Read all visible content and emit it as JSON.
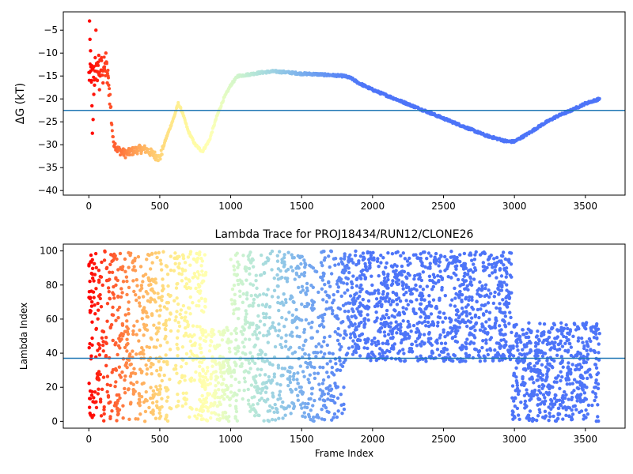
{
  "chart_data": [
    {
      "type": "scatter",
      "title": "",
      "xlabel": "",
      "ylabel": "ΔG (kT)",
      "xlim": [
        -180,
        3780
      ],
      "ylim": [
        -41,
        -1
      ],
      "xticks": [
        0,
        500,
        1000,
        1500,
        2000,
        2500,
        3000,
        3500
      ],
      "yticks": [
        -5,
        -10,
        -15,
        -20,
        -25,
        -30,
        -35,
        -40
      ],
      "hline": -22.5,
      "hline_color": "#1f77b4",
      "colormap": "rainbow (red at frame 0 → violet at late frames)",
      "keypoints": [
        [
          0,
          -15
        ],
        [
          60,
          -14
        ],
        [
          100,
          -13
        ],
        [
          130,
          -14
        ],
        [
          150,
          -20
        ],
        [
          170,
          -29
        ],
        [
          200,
          -31
        ],
        [
          260,
          -32
        ],
        [
          300,
          -31.5
        ],
        [
          350,
          -31
        ],
        [
          400,
          -31
        ],
        [
          450,
          -32
        ],
        [
          500,
          -33
        ],
        [
          540,
          -29
        ],
        [
          600,
          -24
        ],
        [
          630,
          -21
        ],
        [
          660,
          -23
        ],
        [
          700,
          -27
        ],
        [
          750,
          -30
        ],
        [
          800,
          -31.5
        ],
        [
          850,
          -29
        ],
        [
          900,
          -24
        ],
        [
          950,
          -20
        ],
        [
          1000,
          -17
        ],
        [
          1050,
          -15
        ],
        [
          1100,
          -14.8
        ],
        [
          1200,
          -14.3
        ],
        [
          1300,
          -14
        ],
        [
          1400,
          -14.2
        ],
        [
          1500,
          -14.5
        ],
        [
          1600,
          -14.6
        ],
        [
          1700,
          -14.8
        ],
        [
          1800,
          -15
        ],
        [
          1850,
          -15.5
        ],
        [
          1900,
          -16.5
        ],
        [
          2000,
          -18
        ],
        [
          2200,
          -20.5
        ],
        [
          2400,
          -23
        ],
        [
          2600,
          -25.5
        ],
        [
          2800,
          -28
        ],
        [
          2950,
          -29.3
        ],
        [
          3000,
          -29.3
        ],
        [
          3100,
          -27.5
        ],
        [
          3200,
          -25.5
        ],
        [
          3300,
          -23.8
        ],
        [
          3400,
          -22.5
        ],
        [
          3500,
          -21
        ],
        [
          3600,
          -20
        ]
      ],
      "early_scatter": [
        [
          5,
          -3
        ],
        [
          8,
          -7
        ],
        [
          12,
          -9.5
        ],
        [
          15,
          -13
        ],
        [
          18,
          -16
        ],
        [
          22,
          -21.5
        ],
        [
          25,
          -27.5
        ],
        [
          30,
          -24.5
        ],
        [
          35,
          -19
        ],
        [
          40,
          -17
        ],
        [
          45,
          -11
        ],
        [
          50,
          -5
        ],
        [
          55,
          -14
        ],
        [
          60,
          -16
        ],
        [
          65,
          -12
        ],
        [
          70,
          -10.5
        ],
        [
          75,
          -18
        ],
        [
          80,
          -15
        ],
        [
          90,
          -11
        ],
        [
          100,
          -16.5
        ],
        [
          110,
          -13
        ],
        [
          120,
          -10
        ],
        [
          125,
          -12
        ],
        [
          130,
          -16.5
        ],
        [
          135,
          -15
        ],
        [
          140,
          -17
        ]
      ]
    },
    {
      "type": "scatter",
      "title": "Lambda Trace for PROJ18434/RUN12/CLONE26",
      "xlabel": "Frame Index",
      "ylabel": "Lambda Index",
      "xlim": [
        -180,
        3780
      ],
      "ylim": [
        -4,
        104
      ],
      "xticks": [
        0,
        500,
        1000,
        1500,
        2000,
        2500,
        3000,
        3500
      ],
      "yticks": [
        0,
        20,
        40,
        60,
        80,
        100
      ],
      "hline": 37,
      "hline_color": "#1f77b4",
      "colormap": "rainbow (red at frame 0 → violet at late frames)",
      "regimes": [
        {
          "x": [
            0,
            580
          ],
          "y": [
            0,
            100
          ]
        },
        {
          "x": [
            600,
            830
          ],
          "y": [
            0,
            100
          ]
        },
        {
          "x": [
            780,
            1000
          ],
          "y": [
            0,
            55
          ]
        },
        {
          "x": [
            1000,
            1800
          ],
          "y": [
            0,
            100
          ]
        },
        {
          "x": [
            1800,
            2980
          ],
          "y": [
            35,
            100
          ]
        },
        {
          "x": [
            2980,
            3600
          ],
          "y": [
            0,
            58
          ]
        }
      ]
    }
  ]
}
